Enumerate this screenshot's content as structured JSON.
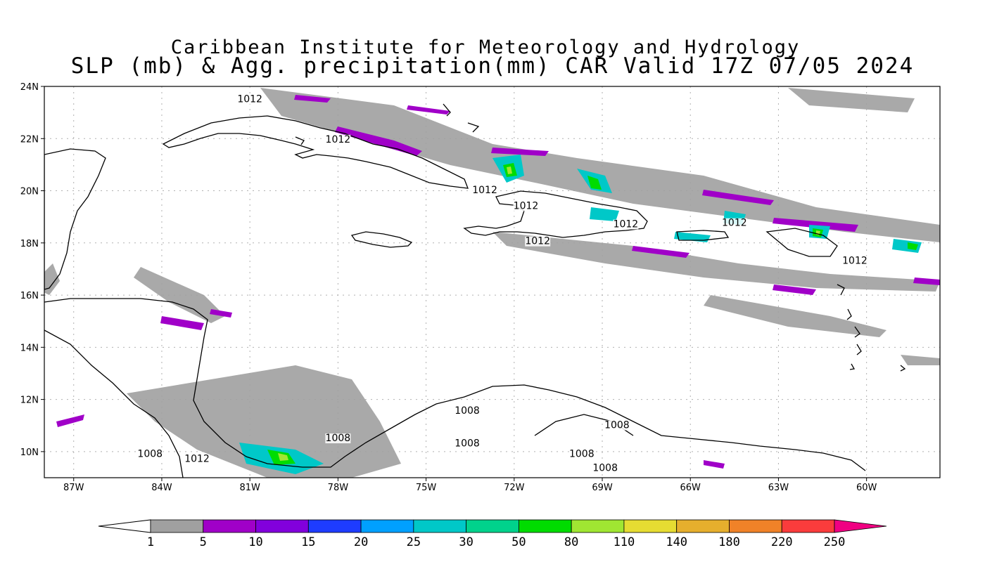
{
  "title": {
    "line1": "Caribbean Institute for Meteorology and Hydrology",
    "line2": "SLP (mb) & Agg. precipitation(mm) CAR Valid 17Z 07/05 2024"
  },
  "map": {
    "lon_range": [
      -88,
      -57.5
    ],
    "lat_range": [
      9,
      24
    ],
    "lon_ticks": [
      {
        "value": -87,
        "label": "87W"
      },
      {
        "value": -84,
        "label": "84W"
      },
      {
        "value": -81,
        "label": "81W"
      },
      {
        "value": -78,
        "label": "78W"
      },
      {
        "value": -75,
        "label": "75W"
      },
      {
        "value": -72,
        "label": "72W"
      },
      {
        "value": -69,
        "label": "69W"
      },
      {
        "value": -66,
        "label": "66W"
      },
      {
        "value": -63,
        "label": "63W"
      },
      {
        "value": -60,
        "label": "60W"
      }
    ],
    "lat_ticks": [
      {
        "value": 24,
        "label": "24N"
      },
      {
        "value": 22,
        "label": "22N"
      },
      {
        "value": 20,
        "label": "20N"
      },
      {
        "value": 18,
        "label": "18N"
      },
      {
        "value": 16,
        "label": "16N"
      },
      {
        "value": 14,
        "label": "14N"
      },
      {
        "value": 12,
        "label": "12N"
      },
      {
        "value": 10,
        "label": "10N"
      }
    ],
    "grid": true,
    "contour_labels": [
      {
        "lon": -81.0,
        "lat": 23.4,
        "label": "1012"
      },
      {
        "lon": -78.0,
        "lat": 21.85,
        "label": "1012"
      },
      {
        "lon": -73.0,
        "lat": 19.9,
        "label": "1012"
      },
      {
        "lon": -71.6,
        "lat": 19.3,
        "label": "1012"
      },
      {
        "lon": -68.2,
        "lat": 18.6,
        "label": "1012"
      },
      {
        "lon": -64.5,
        "lat": 18.65,
        "label": "1012"
      },
      {
        "lon": -71.2,
        "lat": 17.95,
        "label": "1012"
      },
      {
        "lon": -60.4,
        "lat": 17.2,
        "label": "1012"
      },
      {
        "lon": -73.6,
        "lat": 11.45,
        "label": "1008"
      },
      {
        "lon": -78.0,
        "lat": 10.4,
        "label": "1008"
      },
      {
        "lon": -73.6,
        "lat": 10.2,
        "label": "1008"
      },
      {
        "lon": -68.5,
        "lat": 10.9,
        "label": "1008"
      },
      {
        "lon": -69.7,
        "lat": 9.8,
        "label": "1008"
      },
      {
        "lon": -68.9,
        "lat": 9.25,
        "label": "1008"
      },
      {
        "lon": -84.4,
        "lat": 9.8,
        "label": "1008"
      },
      {
        "lon": -82.8,
        "lat": 9.6,
        "label": "1012"
      }
    ],
    "coast_color": "#000000"
  },
  "colorbar": {
    "levels": [
      "1",
      "5",
      "10",
      "15",
      "20",
      "25",
      "30",
      "50",
      "80",
      "110",
      "140",
      "180",
      "220",
      "250"
    ],
    "colors": [
      "#a0a0a0",
      "#a000c8",
      "#8200dc",
      "#1e3cff",
      "#00a0ff",
      "#00c8c8",
      "#00d28c",
      "#00dc00",
      "#a0e632",
      "#e6dc32",
      "#e6af2d",
      "#f08228",
      "#fa3c3c",
      "#f00082"
    ]
  }
}
